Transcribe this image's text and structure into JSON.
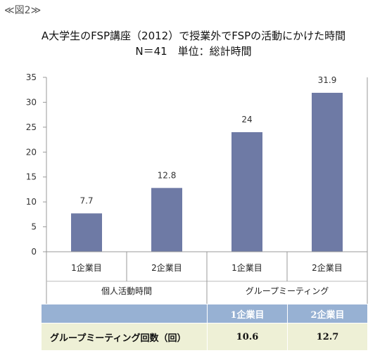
{
  "figure_label": "≪図2≫",
  "title_line1": "A大学生のFSP講座（2012）で授業外でFSPの活動にかけた時間",
  "title_line2": "N＝41　単位：総計時間",
  "chart_data": {
    "type": "bar",
    "title": "A大学生のFSP講座（2012）で授業外でFSPの活動にかけた時間",
    "subtitle": "N＝41　単位：総計時間",
    "categories": [
      "1企業目",
      "2企業目",
      "1企業目",
      "2企業目"
    ],
    "groups": [
      {
        "label": "個人活動時間",
        "categories": [
          "1企業目",
          "2企業目"
        ]
      },
      {
        "label": "グループミーティング",
        "categories": [
          "1企業目",
          "2企業目"
        ]
      }
    ],
    "values": [
      7.7,
      12.8,
      24,
      31.9
    ],
    "data_labels": [
      "7.7",
      "12.8",
      "24",
      "31.9"
    ],
    "ylim": [
      0,
      35
    ],
    "yticks": [
      0,
      5,
      10,
      15,
      20,
      25,
      30,
      35
    ],
    "bar_color": "#6e7aa5",
    "grid": false
  },
  "table": {
    "headers": [
      "",
      "1企業目",
      "2企業目"
    ],
    "rows": [
      {
        "label": "グループミーティング回数（回）",
        "values": [
          "10.6",
          "12.7"
        ]
      }
    ],
    "header_color": "#97b1d3",
    "row_color": "#eef0d6"
  }
}
